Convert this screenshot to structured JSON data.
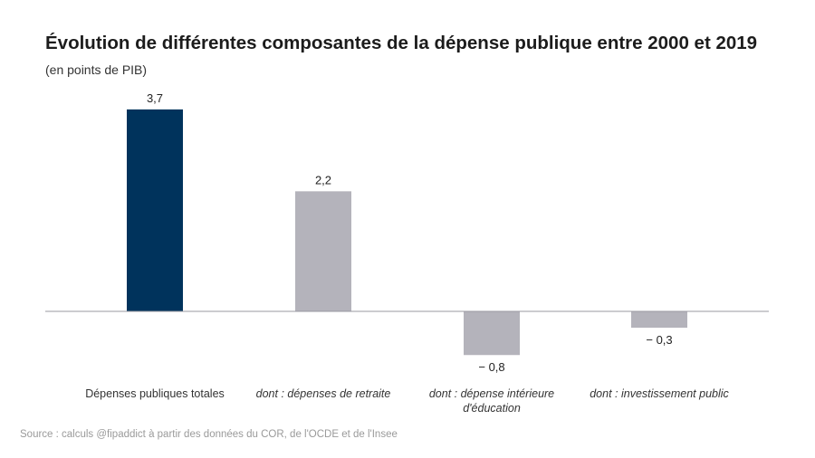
{
  "title": "Évolution de différentes composantes de la dépense publique entre 2000 et 2019",
  "subtitle": "(en points de PIB)",
  "source": "Source : calculs @fipaddict à partir des données du COR, de l'OCDE et de l'Insee",
  "colors": {
    "primary": "#00335c",
    "secondary": "#b4b3bb",
    "axis": "#9a9aa0"
  },
  "chart_data": {
    "type": "bar",
    "categories": [
      "Dépenses publiques totales",
      "dont : dépenses de retraite",
      "dont : dépense intérieure d'éducation",
      "dont : investissement public"
    ],
    "category_lines": [
      [
        "Dépenses publiques totales"
      ],
      [
        "dont : dépenses de retraite"
      ],
      [
        "dont : dépense intérieure",
        "d'éducation"
      ],
      [
        "dont : investissement public"
      ]
    ],
    "values": [
      3.7,
      2.2,
      -0.8,
      -0.3
    ],
    "value_labels": [
      "3,7",
      "2,2",
      "− 0,8",
      "− 0,3"
    ],
    "title": "Évolution de différentes composantes de la dépense publique entre 2000 et 2019",
    "ylabel": "(en points de PIB)",
    "ylim": [
      -1.0,
      3.7
    ],
    "grid": false,
    "legend": "none"
  }
}
